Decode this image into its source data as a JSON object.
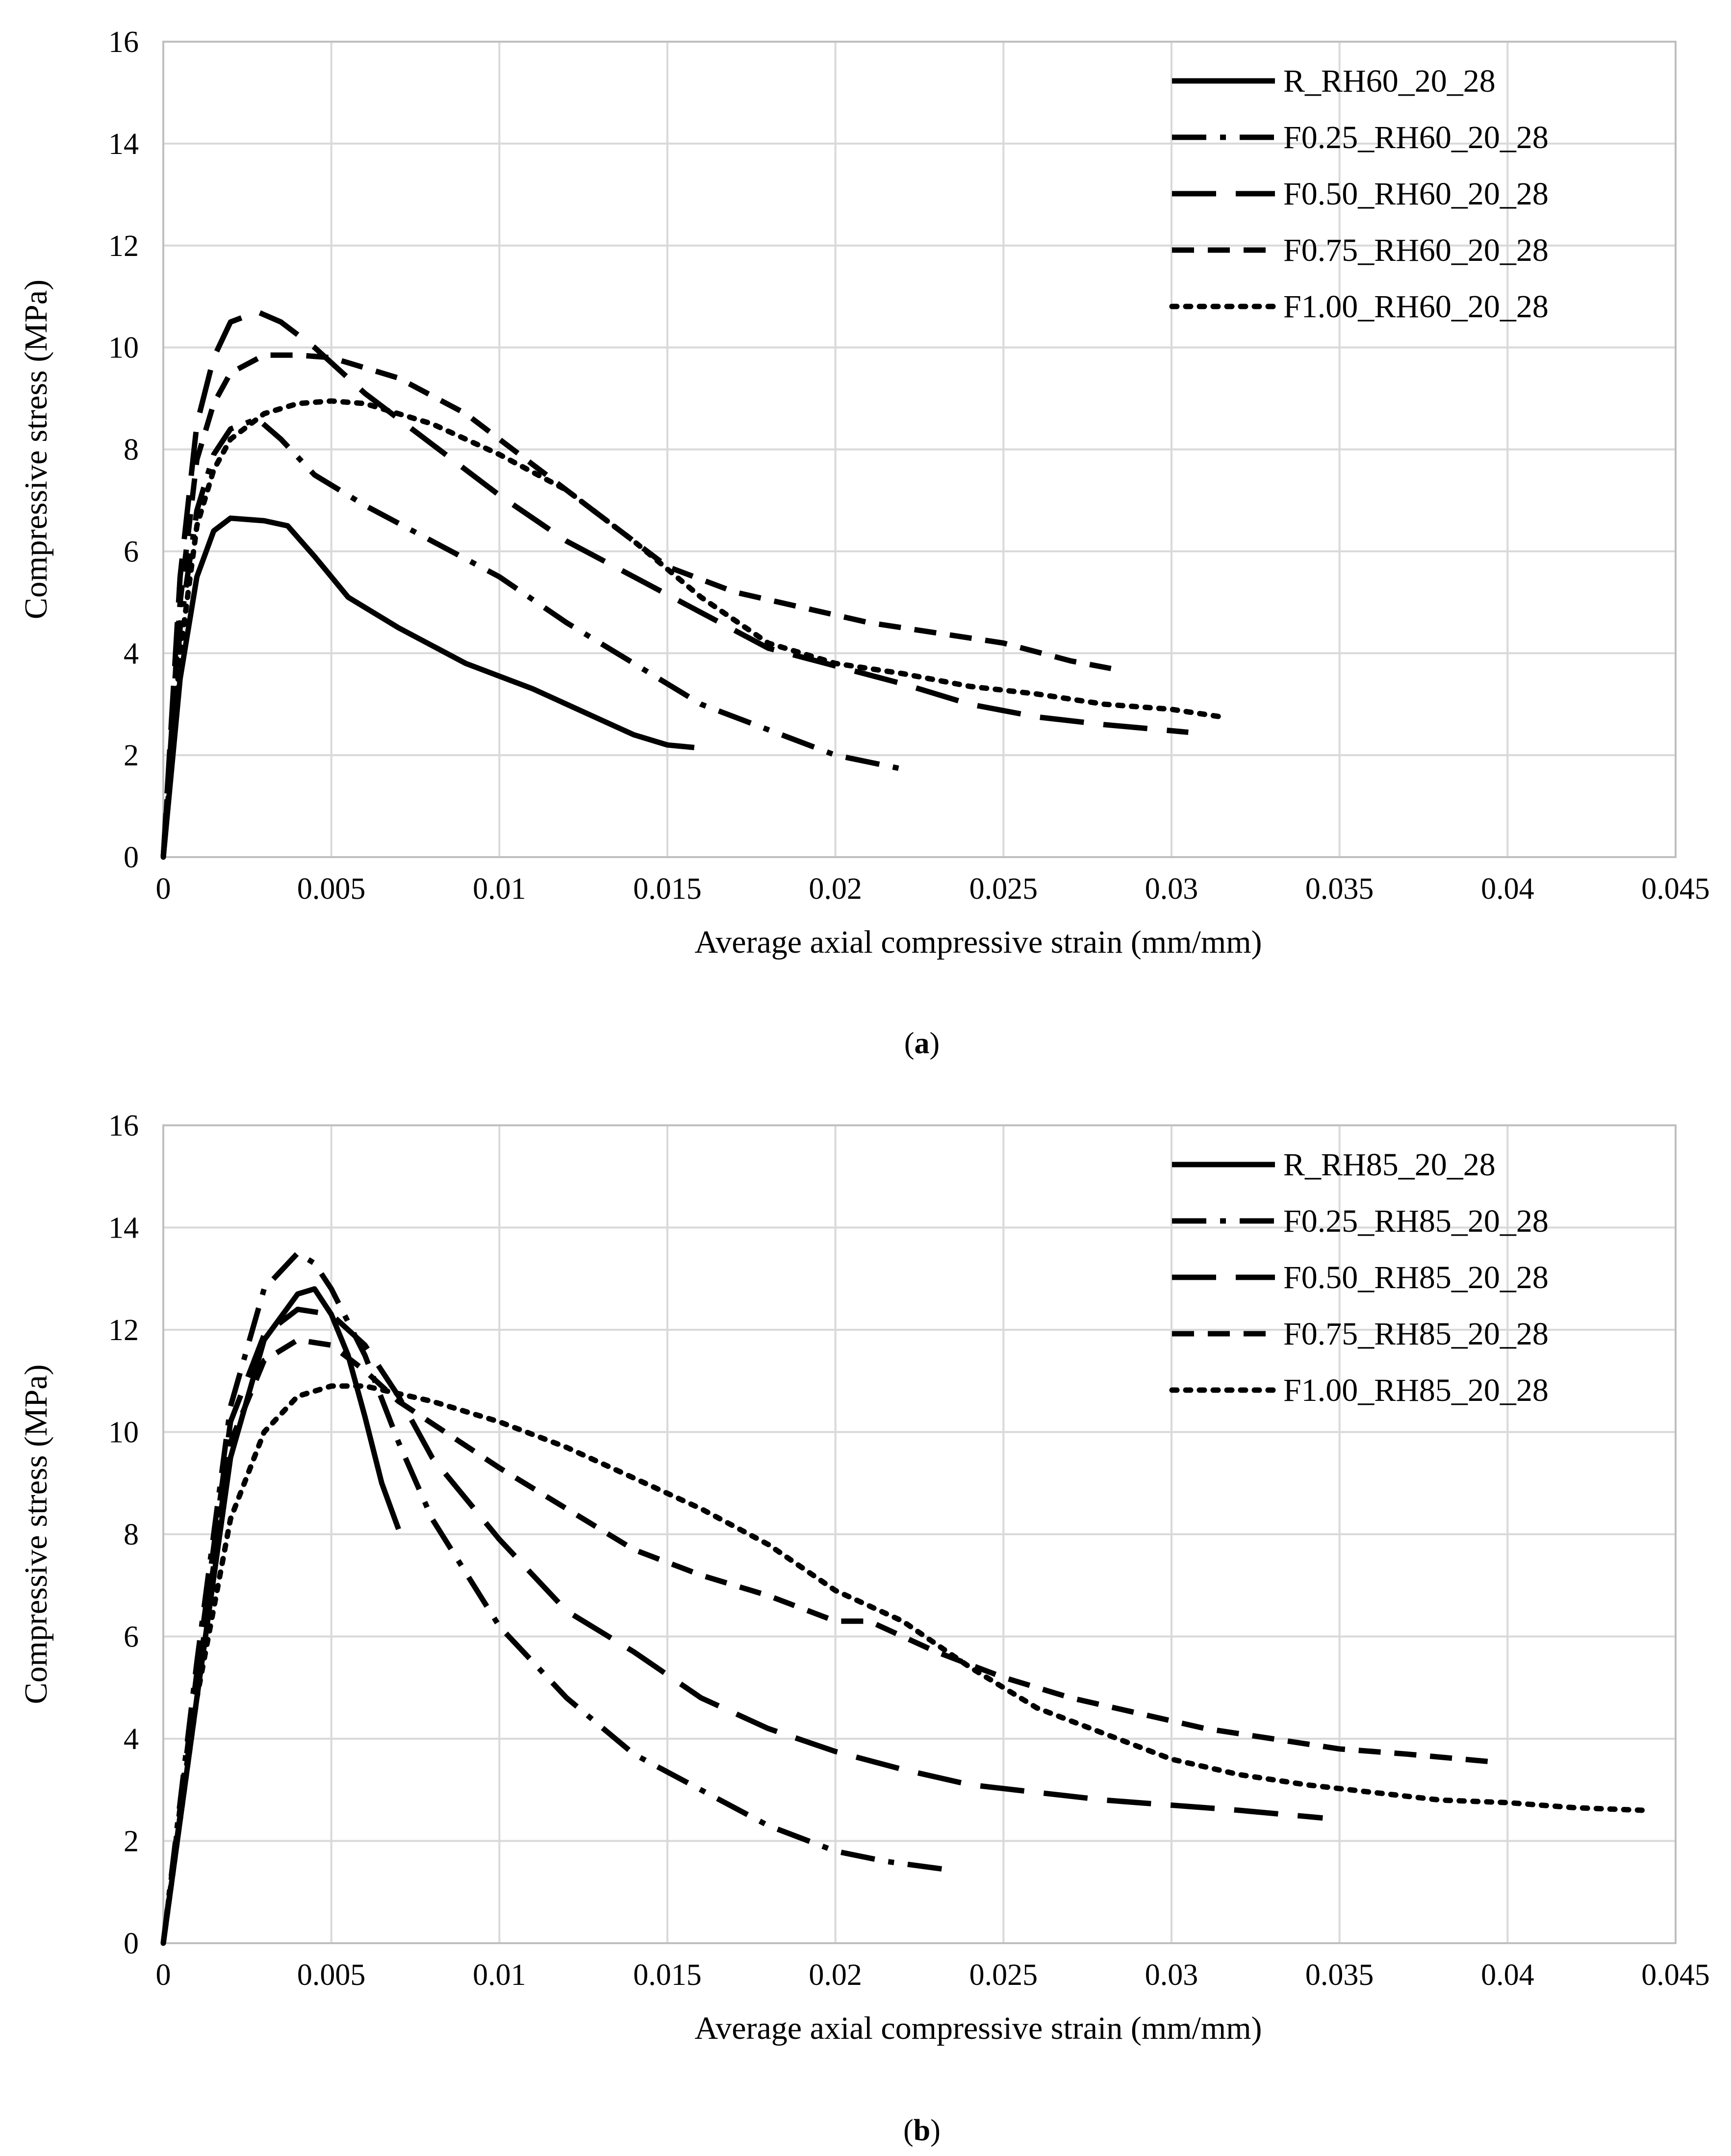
{
  "chart_data": [
    {
      "type": "line",
      "panel_label": "a",
      "xlabel": "Average axial compressive strain (mm/mm)",
      "ylabel": "Compressive stress (MPa)",
      "xlim": [
        0,
        0.045
      ],
      "ylim": [
        0,
        16
      ],
      "x_ticks": [
        "0",
        "0.005",
        "0.01",
        "0.015",
        "0.02",
        "0.025",
        "0.03",
        "0.035",
        "0.04",
        "0.045"
      ],
      "y_ticks": [
        "0",
        "2",
        "4",
        "6",
        "8",
        "10",
        "12",
        "14",
        "16"
      ],
      "grid": true,
      "legend_position": "top-right",
      "series": [
        {
          "name": "R_RH60_20_28",
          "style": "solid",
          "points": [
            [
              0,
              0
            ],
            [
              0.0005,
              3.5
            ],
            [
              0.001,
              5.5
            ],
            [
              0.0015,
              6.4
            ],
            [
              0.002,
              6.65
            ],
            [
              0.003,
              6.6
            ],
            [
              0.0037,
              6.5
            ],
            [
              0.0045,
              5.9
            ],
            [
              0.005,
              5.5
            ],
            [
              0.0055,
              5.1
            ],
            [
              0.007,
              4.5
            ],
            [
              0.009,
              3.8
            ],
            [
              0.011,
              3.3
            ],
            [
              0.013,
              2.7
            ],
            [
              0.014,
              2.4
            ],
            [
              0.015,
              2.2
            ],
            [
              0.0158,
              2.15
            ]
          ]
        },
        {
          "name": "F0.25_RH60_20_28",
          "style": "dashdot",
          "points": [
            [
              0,
              0
            ],
            [
              0.0005,
              4.5
            ],
            [
              0.001,
              6.8
            ],
            [
              0.0015,
              7.9
            ],
            [
              0.002,
              8.4
            ],
            [
              0.0028,
              8.6
            ],
            [
              0.0035,
              8.2
            ],
            [
              0.0045,
              7.5
            ],
            [
              0.006,
              6.9
            ],
            [
              0.008,
              6.2
            ],
            [
              0.01,
              5.5
            ],
            [
              0.012,
              4.6
            ],
            [
              0.014,
              3.8
            ],
            [
              0.016,
              3.0
            ],
            [
              0.018,
              2.5
            ],
            [
              0.02,
              2.0
            ],
            [
              0.0222,
              1.7
            ]
          ]
        },
        {
          "name": "F0.50_RH60_20_28",
          "style": "longdash",
          "points": [
            [
              0,
              0
            ],
            [
              0.0005,
              5.5
            ],
            [
              0.001,
              8.5
            ],
            [
              0.0015,
              9.8
            ],
            [
              0.002,
              10.5
            ],
            [
              0.0028,
              10.7
            ],
            [
              0.0035,
              10.5
            ],
            [
              0.0045,
              10.0
            ],
            [
              0.006,
              9.1
            ],
            [
              0.008,
              8.1
            ],
            [
              0.01,
              7.1
            ],
            [
              0.012,
              6.2
            ],
            [
              0.014,
              5.5
            ],
            [
              0.016,
              4.8
            ],
            [
              0.018,
              4.1
            ],
            [
              0.02,
              3.75
            ],
            [
              0.022,
              3.4
            ],
            [
              0.024,
              3.0
            ],
            [
              0.026,
              2.75
            ],
            [
              0.028,
              2.6
            ],
            [
              0.0305,
              2.45
            ]
          ]
        },
        {
          "name": "F0.75_RH60_20_28",
          "style": "shortdash",
          "points": [
            [
              0,
              0
            ],
            [
              0.0005,
              5.0
            ],
            [
              0.001,
              7.8
            ],
            [
              0.0015,
              8.9
            ],
            [
              0.002,
              9.5
            ],
            [
              0.003,
              9.85
            ],
            [
              0.004,
              9.85
            ],
            [
              0.005,
              9.8
            ],
            [
              0.007,
              9.4
            ],
            [
              0.009,
              8.7
            ],
            [
              0.011,
              7.7
            ],
            [
              0.013,
              6.7
            ],
            [
              0.015,
              5.7
            ],
            [
              0.017,
              5.2
            ],
            [
              0.019,
              4.9
            ],
            [
              0.021,
              4.6
            ],
            [
              0.023,
              4.4
            ],
            [
              0.025,
              4.2
            ],
            [
              0.027,
              3.85
            ],
            [
              0.0282,
              3.7
            ]
          ]
        },
        {
          "name": "F1.00_RH60_20_28",
          "style": "dotted",
          "points": [
            [
              0,
              0
            ],
            [
              0.0005,
              4.0
            ],
            [
              0.001,
              6.5
            ],
            [
              0.0015,
              7.6
            ],
            [
              0.002,
              8.2
            ],
            [
              0.003,
              8.7
            ],
            [
              0.004,
              8.9
            ],
            [
              0.005,
              8.95
            ],
            [
              0.006,
              8.9
            ],
            [
              0.008,
              8.5
            ],
            [
              0.01,
              7.9
            ],
            [
              0.012,
              7.2
            ],
            [
              0.014,
              6.2
            ],
            [
              0.016,
              5.1
            ],
            [
              0.018,
              4.2
            ],
            [
              0.02,
              3.8
            ],
            [
              0.022,
              3.6
            ],
            [
              0.024,
              3.35
            ],
            [
              0.026,
              3.2
            ],
            [
              0.028,
              3.0
            ],
            [
              0.03,
              2.9
            ],
            [
              0.0315,
              2.75
            ]
          ]
        }
      ]
    },
    {
      "type": "line",
      "panel_label": "b",
      "xlabel": "Average axial compressive strain (mm/mm)",
      "ylabel": "Compressive stress (MPa)",
      "xlim": [
        0,
        0.045
      ],
      "ylim": [
        0,
        16
      ],
      "x_ticks": [
        "0",
        "0.005",
        "0.01",
        "0.015",
        "0.02",
        "0.025",
        "0.03",
        "0.035",
        "0.04",
        "0.045"
      ],
      "y_ticks": [
        "0",
        "2",
        "4",
        "6",
        "8",
        "10",
        "12",
        "14",
        "16"
      ],
      "grid": true,
      "legend_position": "top-right",
      "series": [
        {
          "name": "R_RH85_20_28",
          "style": "solid",
          "points": [
            [
              0,
              0
            ],
            [
              0.001,
              4.8
            ],
            [
              0.002,
              9.5
            ],
            [
              0.003,
              11.8
            ],
            [
              0.004,
              12.7
            ],
            [
              0.0045,
              12.8
            ],
            [
              0.005,
              12.3
            ],
            [
              0.0055,
              11.5
            ],
            [
              0.006,
              10.3
            ],
            [
              0.0065,
              9.0
            ],
            [
              0.007,
              8.1
            ]
          ]
        },
        {
          "name": "F0.25_RH85_20_28",
          "style": "dashdot",
          "points": [
            [
              0,
              0
            ],
            [
              0.001,
              5.5
            ],
            [
              0.002,
              10.5
            ],
            [
              0.003,
              12.8
            ],
            [
              0.004,
              13.5
            ],
            [
              0.0045,
              13.3
            ],
            [
              0.005,
              12.8
            ],
            [
              0.006,
              11.5
            ],
            [
              0.007,
              9.8
            ],
            [
              0.008,
              8.3
            ],
            [
              0.01,
              6.2
            ],
            [
              0.012,
              4.8
            ],
            [
              0.014,
              3.7
            ],
            [
              0.016,
              3.0
            ],
            [
              0.018,
              2.3
            ],
            [
              0.02,
              1.8
            ],
            [
              0.0215,
              1.6
            ],
            [
              0.0232,
              1.45
            ]
          ]
        },
        {
          "name": "F0.50_RH85_20_28",
          "style": "longdash",
          "points": [
            [
              0,
              0
            ],
            [
              0.001,
              5.3
            ],
            [
              0.002,
              10.2
            ],
            [
              0.003,
              11.9
            ],
            [
              0.004,
              12.4
            ],
            [
              0.005,
              12.3
            ],
            [
              0.006,
              11.7
            ],
            [
              0.007,
              10.7
            ],
            [
              0.008,
              9.5
            ],
            [
              0.01,
              7.9
            ],
            [
              0.012,
              6.5
            ],
            [
              0.014,
              5.7
            ],
            [
              0.016,
              4.8
            ],
            [
              0.018,
              4.2
            ],
            [
              0.02,
              3.75
            ],
            [
              0.022,
              3.4
            ],
            [
              0.024,
              3.1
            ],
            [
              0.026,
              2.95
            ],
            [
              0.028,
              2.8
            ],
            [
              0.03,
              2.7
            ],
            [
              0.032,
              2.6
            ],
            [
              0.0345,
              2.45
            ]
          ]
        },
        {
          "name": "F0.75_RH85_20_28",
          "style": "shortdash",
          "points": [
            [
              0,
              0
            ],
            [
              0.001,
              5.0
            ],
            [
              0.002,
              9.8
            ],
            [
              0.003,
              11.4
            ],
            [
              0.004,
              11.8
            ],
            [
              0.005,
              11.7
            ],
            [
              0.006,
              11.2
            ],
            [
              0.007,
              10.6
            ],
            [
              0.01,
              9.3
            ],
            [
              0.012,
              8.5
            ],
            [
              0.014,
              7.7
            ],
            [
              0.016,
              7.2
            ],
            [
              0.018,
              6.8
            ],
            [
              0.02,
              6.3
            ],
            [
              0.021,
              6.3
            ],
            [
              0.023,
              5.7
            ],
            [
              0.025,
              5.2
            ],
            [
              0.027,
              4.8
            ],
            [
              0.029,
              4.5
            ],
            [
              0.031,
              4.2
            ],
            [
              0.033,
              4.0
            ],
            [
              0.035,
              3.8
            ],
            [
              0.037,
              3.7
            ],
            [
              0.0395,
              3.55
            ]
          ]
        },
        {
          "name": "F1.00_RH85_20_28",
          "style": "dotted",
          "points": [
            [
              0,
              0
            ],
            [
              0.001,
              4.8
            ],
            [
              0.002,
              8.3
            ],
            [
              0.003,
              10.0
            ],
            [
              0.004,
              10.7
            ],
            [
              0.005,
              10.9
            ],
            [
              0.006,
              10.9
            ],
            [
              0.008,
              10.6
            ],
            [
              0.01,
              10.2
            ],
            [
              0.012,
              9.7
            ],
            [
              0.014,
              9.1
            ],
            [
              0.016,
              8.5
            ],
            [
              0.018,
              7.8
            ],
            [
              0.02,
              6.9
            ],
            [
              0.022,
              6.3
            ],
            [
              0.024,
              5.4
            ],
            [
              0.026,
              4.6
            ],
            [
              0.028,
              4.1
            ],
            [
              0.03,
              3.6
            ],
            [
              0.032,
              3.3
            ],
            [
              0.034,
              3.1
            ],
            [
              0.036,
              2.95
            ],
            [
              0.038,
              2.8
            ],
            [
              0.04,
              2.75
            ],
            [
              0.042,
              2.65
            ],
            [
              0.044,
              2.6
            ]
          ]
        }
      ]
    }
  ]
}
